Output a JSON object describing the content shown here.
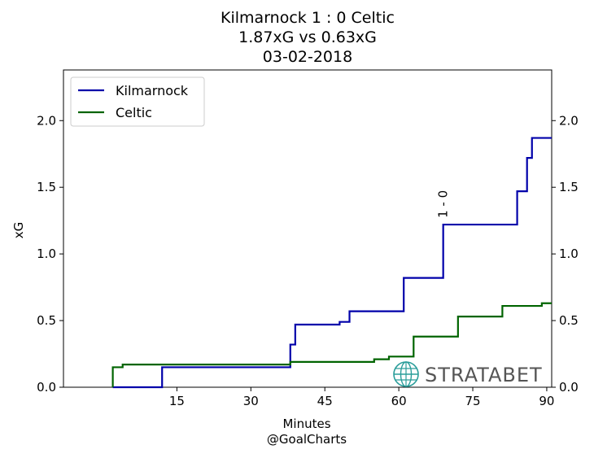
{
  "chart_data": {
    "type": "line",
    "title_lines": [
      "Kilmarnock 1 : 0 Celtic",
      "1.87xG vs 0.63xG",
      "03-02-2018"
    ],
    "xlabel": "Minutes",
    "xlabel_sub": "@GoalCharts",
    "ylabel": "xG",
    "xlim": [
      -8,
      91
    ],
    "ylim": [
      0,
      2.38
    ],
    "x_ticks": [
      15,
      30,
      45,
      60,
      75,
      90
    ],
    "y_ticks": [
      0.0,
      0.5,
      1.0,
      1.5,
      2.0
    ],
    "y_tick_labels": [
      "0.0",
      "0.5",
      "1.0",
      "1.5",
      "2.0"
    ],
    "legend_position": "top-left",
    "watermark": "STRATABET",
    "series": [
      {
        "name": "Kilmarnock",
        "color": "#0000aa",
        "step_points": [
          [
            2,
            0.0
          ],
          [
            12,
            0.0
          ],
          [
            12,
            0.15
          ],
          [
            19,
            0.15
          ],
          [
            19,
            0.15
          ],
          [
            38,
            0.15
          ],
          [
            38,
            0.32
          ],
          [
            39,
            0.32
          ],
          [
            39,
            0.47
          ],
          [
            48,
            0.47
          ],
          [
            48,
            0.49
          ],
          [
            50,
            0.49
          ],
          [
            50,
            0.57
          ],
          [
            61,
            0.57
          ],
          [
            61,
            0.82
          ],
          [
            69,
            0.82
          ],
          [
            69,
            1.22
          ],
          [
            84,
            1.22
          ],
          [
            84,
            1.47
          ],
          [
            86,
            1.47
          ],
          [
            86,
            1.72
          ],
          [
            87,
            1.72
          ],
          [
            87,
            1.87
          ],
          [
            91,
            1.87
          ]
        ]
      },
      {
        "name": "Celtic",
        "color": "#006400",
        "step_points": [
          [
            2,
            0.0
          ],
          [
            2,
            0.15
          ],
          [
            4,
            0.15
          ],
          [
            4,
            0.17
          ],
          [
            38,
            0.17
          ],
          [
            38,
            0.19
          ],
          [
            55,
            0.19
          ],
          [
            55,
            0.21
          ],
          [
            58,
            0.21
          ],
          [
            58,
            0.23
          ],
          [
            63,
            0.23
          ],
          [
            63,
            0.38
          ],
          [
            69,
            0.38
          ],
          [
            69,
            0.38
          ],
          [
            72,
            0.38
          ],
          [
            72,
            0.53
          ],
          [
            81,
            0.53
          ],
          [
            81,
            0.61
          ],
          [
            89,
            0.61
          ],
          [
            89,
            0.63
          ],
          [
            91,
            0.63
          ]
        ]
      }
    ],
    "annotations": [
      {
        "text": "1 - 0",
        "x": 69,
        "y": 1.27,
        "rotation": -90
      }
    ]
  }
}
